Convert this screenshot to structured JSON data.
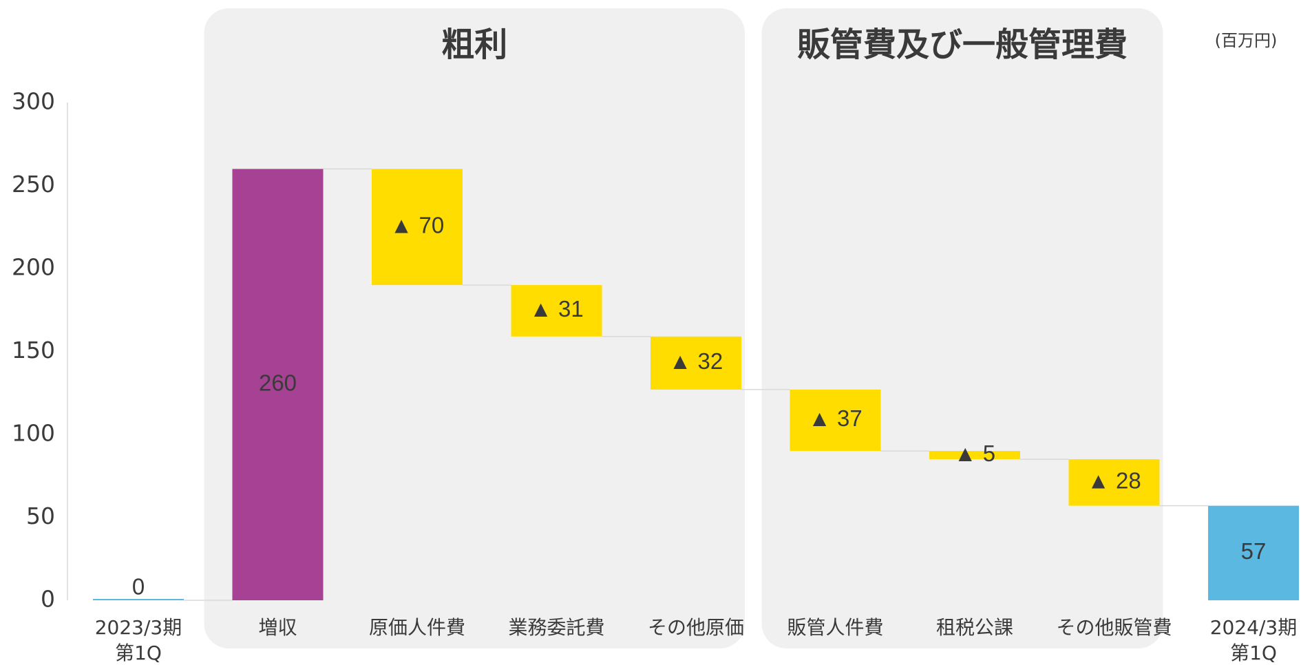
{
  "chart_data": {
    "type": "bar",
    "variant": "waterfall",
    "unit_label": "(百万円)",
    "groups": [
      {
        "title": "粗利",
        "from": 1,
        "to": 4
      },
      {
        "title": "販管費及び一般管理費",
        "from": 5,
        "to": 7
      }
    ],
    "categories": [
      [
        "2023/3期",
        "第1Q"
      ],
      [
        "増収"
      ],
      [
        "原価人件費"
      ],
      [
        "業務委託費"
      ],
      [
        "その他原価"
      ],
      [
        "販管人件費"
      ],
      [
        "租税公課"
      ],
      [
        "その他販管費"
      ],
      [
        "2024/3期",
        "第1Q"
      ]
    ],
    "steps": [
      {
        "kind": "total",
        "value": 0,
        "label": "0"
      },
      {
        "kind": "increase",
        "value": 260,
        "label": "260"
      },
      {
        "kind": "decrease",
        "value": -70,
        "label": "▲ 70"
      },
      {
        "kind": "decrease",
        "value": -31,
        "label": "▲ 31"
      },
      {
        "kind": "decrease",
        "value": -32,
        "label": "▲ 32"
      },
      {
        "kind": "decrease",
        "value": -37,
        "label": "▲ 37"
      },
      {
        "kind": "decrease",
        "value": -5,
        "label": "▲ 5"
      },
      {
        "kind": "decrease",
        "value": -28,
        "label": "▲ 28"
      },
      {
        "kind": "total",
        "value": 57,
        "label": "57"
      }
    ],
    "ylim": [
      0,
      300
    ],
    "yticks": [
      0,
      50,
      100,
      150,
      200,
      250,
      300
    ],
    "grid": false,
    "legend": "none",
    "colors": {
      "total": "#5BB8E0",
      "increase": "#A64193",
      "decrease": "#FFDD00",
      "group_bg": "#F0F0F0",
      "connector": "#D9D9D9",
      "axis": "#D9D9D9",
      "text": "#3A3A3A"
    }
  }
}
